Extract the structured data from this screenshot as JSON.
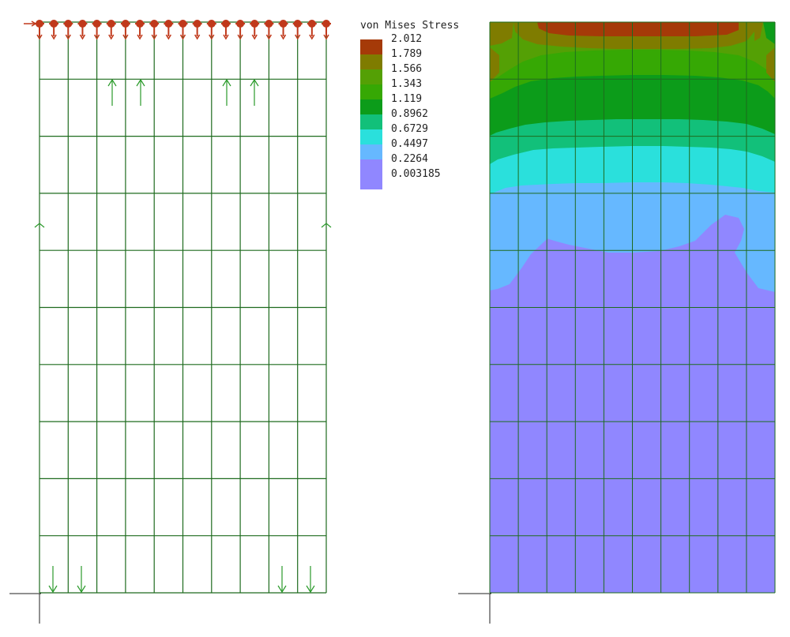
{
  "legend": {
    "title": "von Mises Stress",
    "entries": [
      {
        "value": "2.012",
        "color": "#a53a08"
      },
      {
        "value": "1.789",
        "color": "#7f7c00"
      },
      {
        "value": "1.566",
        "color": "#54a005"
      },
      {
        "value": "1.343",
        "color": "#36a804"
      },
      {
        "value": "1.119",
        "color": "#0c9c1a"
      },
      {
        "value": "0.8962",
        "color": "#12c07a"
      },
      {
        "value": "0.6729",
        "color": "#2ae0dc"
      },
      {
        "value": "0.4497",
        "color": "#66b8ff"
      },
      {
        "value": "0.2264",
        "color": "#9087ff"
      },
      {
        "value": "0.003185",
        "color": "#9087ff"
      }
    ]
  },
  "mesh": {
    "columns": 10,
    "rows": 10,
    "line_color": "#1e6b1e",
    "axis_color": "#222222",
    "load_color": "#2a9a2a",
    "support_color": "#c0391b"
  },
  "contour_colors": {
    "top": "#a53a08",
    "band1": "#7f7c00",
    "band2": "#54a005",
    "band3": "#36a804",
    "band4": "#0c9c1a",
    "band5": "#12c07a",
    "band6": "#2ae0dc",
    "band7": "#66b8ff",
    "base": "#9087ff"
  }
}
